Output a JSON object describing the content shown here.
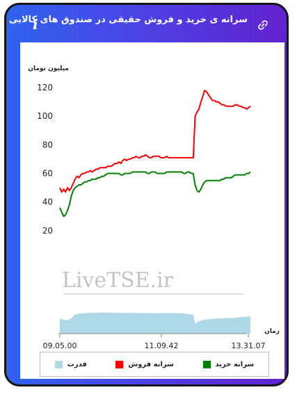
{
  "header": {
    "title": "سرانه ی خرید و فروش حقیقی در صندوق های کالایی",
    "info_icon": "info-icon",
    "link_icon": "link-icon"
  },
  "colors": {
    "sell": "#ff0000",
    "buy": "#008000",
    "power": "#add8e6"
  },
  "chart_data": {
    "type": "line",
    "ylabel": "میلیون تومان",
    "xlabel": "زمان",
    "ylim": [
      0,
      120
    ],
    "yticks": [
      "120",
      "100",
      "80",
      "60",
      "40",
      "20"
    ],
    "xticks": [
      "09.05.00",
      "11.09.42",
      "13.31.07"
    ],
    "watermark": "LiveTSE.ir",
    "grid": false,
    "legend_position": "bottom",
    "series": [
      {
        "name": "سرانه فروش",
        "color": "#ff0000",
        "x": [
          0,
          1,
          2,
          3,
          4,
          5,
          6,
          7,
          8,
          9,
          10,
          11,
          12,
          13,
          14,
          15,
          16,
          17,
          18,
          19,
          20,
          21,
          22,
          23,
          24,
          25,
          26,
          27,
          28,
          29,
          30,
          31,
          32,
          33,
          34,
          35,
          36,
          37,
          38,
          39,
          40,
          41,
          42,
          43,
          44,
          45,
          46,
          47,
          48,
          49,
          50,
          51,
          52,
          53,
          54,
          55,
          56,
          57,
          58,
          59,
          60,
          61,
          62,
          63,
          64,
          65,
          66,
          67,
          68,
          69,
          70,
          71,
          72,
          73,
          74,
          75,
          76,
          77,
          78,
          79,
          80,
          81,
          82,
          83,
          84,
          85,
          86,
          87,
          88,
          89,
          90,
          91,
          92,
          93,
          94,
          95,
          96,
          97,
          98,
          99,
          100
        ],
        "values": [
          50,
          47,
          49,
          47,
          50,
          48,
          50,
          53,
          56,
          58,
          57,
          59,
          60,
          60,
          61,
          61,
          62,
          61,
          62,
          63,
          63,
          64,
          64,
          64,
          64,
          65,
          65,
          65,
          66,
          67,
          67,
          68,
          67,
          69,
          70,
          69,
          70,
          70,
          71,
          71,
          72,
          71,
          71,
          72,
          72,
          73,
          72,
          71,
          71,
          72,
          72,
          72,
          72,
          71,
          71,
          71,
          72,
          71,
          71,
          71,
          71,
          71,
          71,
          71,
          71,
          71,
          71,
          71,
          71,
          71,
          71,
          100,
          103,
          105,
          110,
          114,
          118,
          117,
          115,
          113,
          111,
          111,
          110,
          110,
          109,
          108,
          108,
          107,
          107,
          107,
          107,
          107,
          108,
          108,
          107,
          107,
          106,
          106,
          105,
          106,
          107
        ]
      },
      {
        "name": "سرانه خرید",
        "color": "#008000",
        "x": [
          0,
          1,
          2,
          3,
          4,
          5,
          6,
          7,
          8,
          9,
          10,
          11,
          12,
          13,
          14,
          15,
          16,
          17,
          18,
          19,
          20,
          21,
          22,
          23,
          24,
          25,
          26,
          27,
          28,
          29,
          30,
          31,
          32,
          33,
          34,
          35,
          36,
          37,
          38,
          39,
          40,
          41,
          42,
          43,
          44,
          45,
          46,
          47,
          48,
          49,
          50,
          51,
          52,
          53,
          54,
          55,
          56,
          57,
          58,
          59,
          60,
          61,
          62,
          63,
          64,
          65,
          66,
          67,
          68,
          69,
          70,
          71,
          72,
          73,
          74,
          75,
          76,
          77,
          78,
          79,
          80,
          81,
          82,
          83,
          84,
          85,
          86,
          87,
          88,
          89,
          90,
          91,
          92,
          93,
          94,
          95,
          96,
          97,
          98,
          99,
          100
        ],
        "values": [
          36,
          33,
          30,
          31,
          34,
          38,
          44,
          48,
          50,
          51,
          52,
          52,
          53,
          54,
          54,
          55,
          55,
          56,
          56,
          56,
          57,
          57,
          58,
          58,
          59,
          60,
          60,
          60,
          60,
          60,
          60,
          60,
          59,
          59,
          60,
          60,
          60,
          60,
          61,
          61,
          61,
          61,
          61,
          61,
          61,
          61,
          60,
          60,
          61,
          61,
          61,
          60,
          60,
          60,
          60,
          60,
          61,
          61,
          61,
          61,
          61,
          61,
          61,
          61,
          61,
          60,
          60,
          61,
          61,
          60,
          60,
          52,
          48,
          47,
          49,
          52,
          54,
          55,
          55,
          55,
          55,
          55,
          55,
          55,
          55,
          56,
          56,
          57,
          57,
          57,
          57,
          58,
          59,
          59,
          59,
          59,
          59,
          59,
          60,
          60,
          61
        ]
      },
      {
        "name": "قدرت",
        "color": "#add8e6",
        "type": "area",
        "x": [
          0,
          2,
          4,
          6,
          8,
          10,
          14,
          18,
          22,
          26,
          30,
          34,
          38,
          42,
          46,
          50,
          54,
          58,
          62,
          66,
          70,
          71,
          73,
          76,
          80,
          84,
          88,
          92,
          96,
          100
        ],
        "values": [
          0.55,
          0.5,
          0.48,
          0.55,
          0.68,
          0.72,
          0.74,
          0.75,
          0.76,
          0.76,
          0.75,
          0.74,
          0.75,
          0.74,
          0.74,
          0.73,
          0.74,
          0.74,
          0.73,
          0.72,
          0.68,
          0.35,
          0.45,
          0.5,
          0.53,
          0.55,
          0.56,
          0.57,
          0.6,
          0.62
        ]
      }
    ]
  },
  "legend": [
    {
      "label": "سرانه خرید",
      "color": "#008000"
    },
    {
      "label": "سرانه فروش",
      "color": "#ff0000"
    },
    {
      "label": "قدرت",
      "color": "#add8e6"
    }
  ]
}
